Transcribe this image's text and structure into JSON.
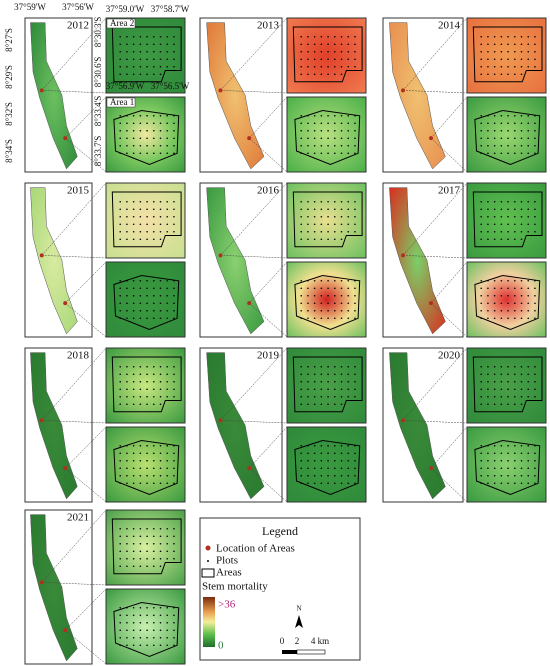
{
  "panels": [
    {
      "year": "2012"
    },
    {
      "year": "2013"
    },
    {
      "year": "2014"
    },
    {
      "year": "2015"
    },
    {
      "year": "2016"
    },
    {
      "year": "2017"
    },
    {
      "year": "2018"
    },
    {
      "year": "2019"
    },
    {
      "year": "2020"
    },
    {
      "year": "2021"
    }
  ],
  "coordinates": {
    "top": [
      "37°59'W",
      "37°56'W"
    ],
    "left": [
      "8°27'S",
      "8°29'S",
      "8°32'S",
      "8°34'S"
    ],
    "area2": {
      "label": "Area 2",
      "top": [
        "37°59.0'W",
        "37°58.7'W"
      ],
      "left": [
        "8°30.3'S",
        "8°30.6'S"
      ]
    },
    "area1": {
      "label": "Area 1",
      "top": [
        "37°56.9'W",
        "37°56.5'W"
      ],
      "left": [
        "8°33.4'S",
        "8°33.7'S"
      ]
    }
  },
  "legend": {
    "title": "Legend",
    "items": [
      "Location of Areas",
      "Plots",
      "Areas"
    ],
    "scale_title": "Stem mortality",
    "scale_max": ">36",
    "scale_min": "0",
    "north": "N",
    "scale_bar": [
      "0",
      "2",
      "4 km"
    ]
  }
}
